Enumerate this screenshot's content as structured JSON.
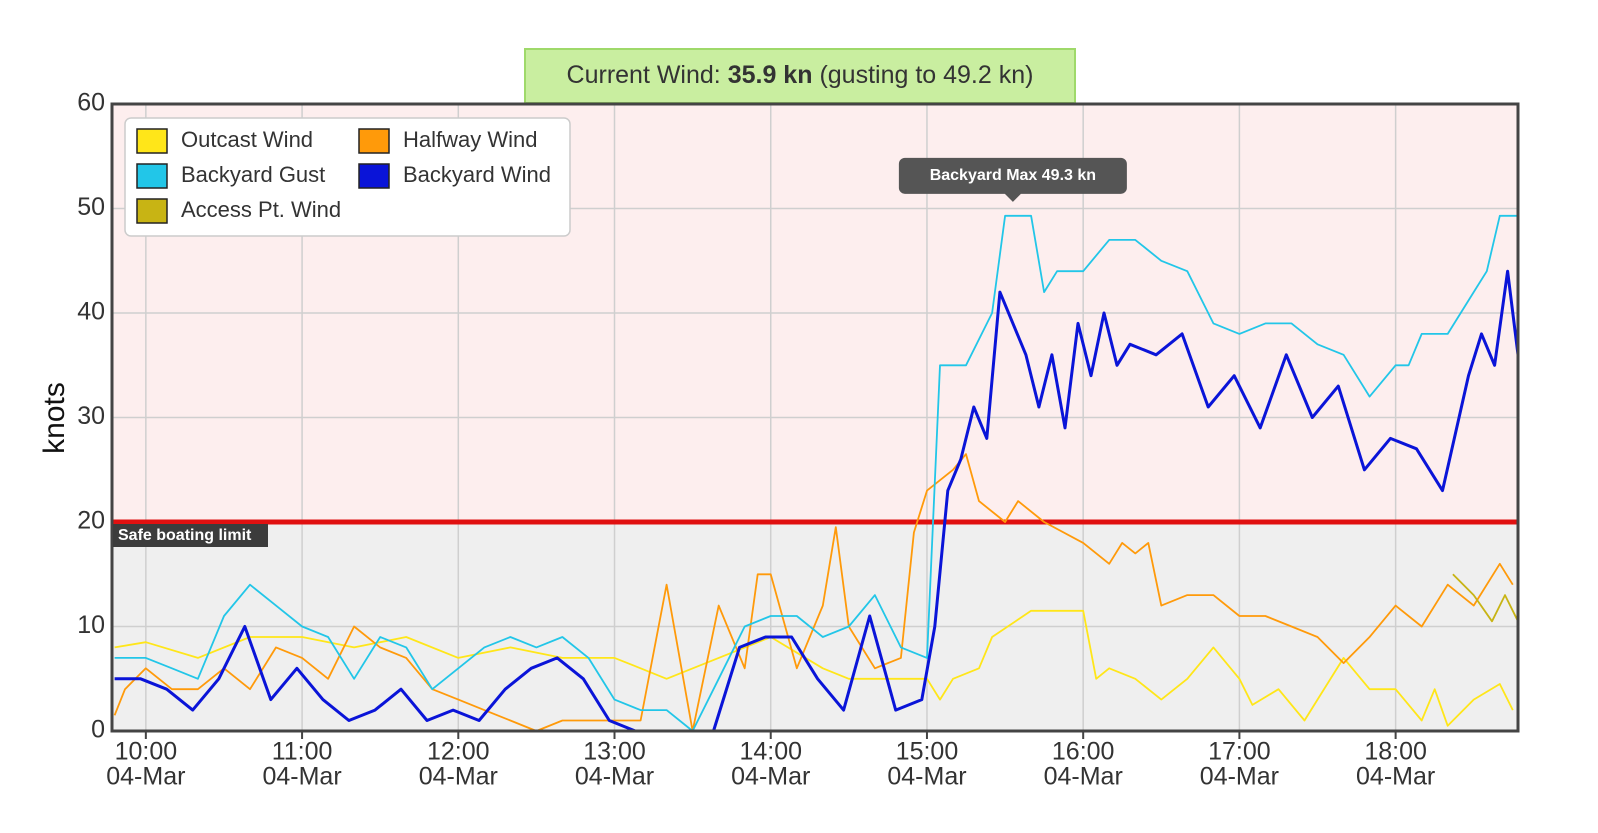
{
  "chart_data": {
    "type": "line",
    "banner": {
      "label": "Current Wind:",
      "value": "35.9 kn",
      "gust": "(gusting to 49.2 kn)"
    },
    "ylabel": "knots",
    "ylim": [
      0,
      60
    ],
    "yticks": [
      0,
      10,
      20,
      30,
      40,
      50,
      60
    ],
    "xlim": [
      "09:47",
      "18:47"
    ],
    "xticks": [
      {
        "value": "10:00",
        "label": "04-Mar"
      },
      {
        "value": "11:00",
        "label": "04-Mar"
      },
      {
        "value": "12:00",
        "label": "04-Mar"
      },
      {
        "value": "13:00",
        "label": "04-Mar"
      },
      {
        "value": "14:00",
        "label": "04-Mar"
      },
      {
        "value": "15:00",
        "label": "04-Mar"
      },
      {
        "value": "16:00",
        "label": "04-Mar"
      },
      {
        "value": "17:00",
        "label": "04-Mar"
      },
      {
        "value": "18:00",
        "label": "04-Mar"
      }
    ],
    "grid": true,
    "threshold": {
      "value": 20,
      "label": "Safe boating limit",
      "color": "#e01010",
      "above_color": "#fdeeee",
      "below_color": "#efefef"
    },
    "annotation": {
      "text": "Backyard Max 49.3 kn",
      "x": "15:33",
      "y": 49.3
    },
    "legend": "upper left",
    "series": [
      {
        "name": "Outcast Wind",
        "color": "#ffe619",
        "x": [
          "09:48",
          "10:00",
          "10:20",
          "10:40",
          "11:00",
          "11:20",
          "11:40",
          "12:00",
          "12:20",
          "12:40",
          "13:00",
          "13:10",
          "13:20",
          "13:40",
          "14:00",
          "14:20",
          "14:30",
          "14:45",
          "15:00",
          "15:05",
          "15:10",
          "15:20",
          "15:25",
          "15:40",
          "16:00",
          "16:05",
          "16:10",
          "16:20",
          "16:30",
          "16:40",
          "16:50",
          "17:00",
          "17:05",
          "17:15",
          "17:25",
          "17:30",
          "17:40",
          "17:50",
          "18:00",
          "18:10",
          "18:15",
          "18:20",
          "18:30",
          "18:40",
          "18:45"
        ],
        "values": [
          8,
          8.5,
          7,
          9,
          9,
          8,
          9,
          7,
          8,
          7,
          7,
          6,
          5,
          7,
          9,
          6,
          5,
          5,
          5,
          3,
          5,
          6,
          9,
          11.5,
          11.5,
          5,
          6,
          5,
          3,
          5,
          8,
          5,
          2.5,
          4,
          1,
          3,
          7,
          4,
          4,
          1,
          4,
          0.5,
          3,
          4.5,
          2
        ]
      },
      {
        "name": "Halfway Wind",
        "color": "#ff9a0a",
        "x": [
          "09:48",
          "09:52",
          "10:00",
          "10:10",
          "10:20",
          "10:30",
          "10:40",
          "10:50",
          "11:00",
          "11:10",
          "11:20",
          "11:30",
          "11:40",
          "11:50",
          "12:00",
          "12:10",
          "12:20",
          "12:30",
          "12:40",
          "12:50",
          "13:00",
          "13:10",
          "13:20",
          "13:30",
          "13:40",
          "13:50",
          "13:55",
          "14:00",
          "14:10",
          "14:20",
          "14:25",
          "14:30",
          "14:40",
          "14:50",
          "14:55",
          "15:00",
          "15:10",
          "15:15",
          "15:20",
          "15:30",
          "15:35",
          "15:45",
          "16:00",
          "16:10",
          "16:15",
          "16:20",
          "16:25",
          "16:30",
          "16:40",
          "16:50",
          "17:00",
          "17:10",
          "17:20",
          "17:30",
          "17:40",
          "17:50",
          "18:00",
          "18:10",
          "18:20",
          "18:30",
          "18:40",
          "18:45"
        ],
        "values": [
          1.5,
          4,
          6,
          4,
          4,
          6,
          4,
          8,
          7,
          5,
          10,
          8,
          7,
          4,
          3,
          2,
          1,
          0,
          1,
          1,
          1,
          1,
          14,
          0,
          12,
          6,
          15,
          15,
          6,
          12,
          19.5,
          10,
          6,
          7,
          19,
          23,
          25,
          26.5,
          22,
          20,
          22,
          20,
          18,
          16,
          18,
          17,
          18,
          12,
          13,
          13,
          11,
          11,
          10,
          9,
          6.5,
          9,
          12,
          10,
          14,
          12,
          16,
          14
        ]
      },
      {
        "name": "Backyard Gust",
        "color": "#22c6e8",
        "x": [
          "09:48",
          "10:00",
          "10:10",
          "10:20",
          "10:30",
          "10:40",
          "10:50",
          "11:00",
          "11:10",
          "11:20",
          "11:30",
          "11:40",
          "11:50",
          "12:00",
          "12:10",
          "12:20",
          "12:30",
          "12:40",
          "12:50",
          "13:00",
          "13:10",
          "13:20",
          "13:30",
          "13:40",
          "13:50",
          "14:00",
          "14:10",
          "14:20",
          "14:30",
          "14:40",
          "14:50",
          "15:00",
          "15:05",
          "15:15",
          "15:25",
          "15:30",
          "15:40",
          "15:45",
          "15:50",
          "16:00",
          "16:10",
          "16:20",
          "16:30",
          "16:40",
          "16:50",
          "17:00",
          "17:10",
          "17:20",
          "17:30",
          "17:40",
          "17:50",
          "18:00",
          "18:05",
          "18:10",
          "18:20",
          "18:30",
          "18:35",
          "18:40",
          "18:47"
        ],
        "values": [
          7,
          7,
          6,
          5,
          11,
          14,
          12,
          10,
          9,
          5,
          9,
          8,
          4,
          6,
          8,
          9,
          8,
          9,
          7,
          3,
          2,
          2,
          0,
          5,
          10,
          11,
          11,
          9,
          10,
          13,
          8,
          7,
          35,
          35,
          40,
          49.3,
          49.3,
          42,
          44,
          44,
          47,
          47,
          45,
          44,
          39,
          38,
          39,
          39,
          37,
          36,
          32,
          35,
          35,
          38,
          38,
          42,
          44,
          49.3,
          49.3
        ]
      },
      {
        "name": "Backyard Wind",
        "color": "#0a14d8",
        "x": [
          "09:48",
          "09:58",
          "10:08",
          "10:18",
          "10:28",
          "10:38",
          "10:48",
          "10:58",
          "11:08",
          "11:18",
          "11:28",
          "11:38",
          "11:48",
          "11:58",
          "12:08",
          "12:18",
          "12:28",
          "12:38",
          "12:48",
          "12:58",
          "13:08",
          "13:18",
          "13:28",
          "13:38",
          "13:48",
          "13:58",
          "14:08",
          "14:18",
          "14:28",
          "14:38",
          "14:48",
          "14:58",
          "15:03",
          "15:08",
          "15:13",
          "15:18",
          "15:23",
          "15:28",
          "15:33",
          "15:38",
          "15:43",
          "15:48",
          "15:53",
          "15:58",
          "16:03",
          "16:08",
          "16:13",
          "16:18",
          "16:28",
          "16:38",
          "16:48",
          "16:58",
          "17:08",
          "17:18",
          "17:28",
          "17:38",
          "17:48",
          "17:58",
          "18:08",
          "18:18",
          "18:28",
          "18:33",
          "18:38",
          "18:43",
          "18:47"
        ],
        "values": [
          5,
          5,
          4,
          2,
          5,
          10,
          3,
          6,
          3,
          1,
          2,
          4,
          1,
          2,
          1,
          4,
          6,
          7,
          5,
          1,
          0,
          0,
          0,
          0,
          8,
          9,
          9,
          5,
          2,
          11,
          2,
          3,
          10,
          23,
          26,
          31,
          28,
          42,
          39,
          36,
          31,
          36,
          29,
          39,
          34,
          40,
          35,
          37,
          36,
          38,
          31,
          34,
          29,
          36,
          30,
          33,
          25,
          28,
          27,
          23,
          34,
          38,
          35,
          44,
          36
        ]
      },
      {
        "name": "Access Pt. Wind",
        "color": "#c8b414",
        "x": [
          "18:22",
          "18:30",
          "18:37",
          "18:42",
          "18:47"
        ],
        "values": [
          15,
          13,
          10.5,
          13,
          10.5
        ]
      }
    ]
  }
}
